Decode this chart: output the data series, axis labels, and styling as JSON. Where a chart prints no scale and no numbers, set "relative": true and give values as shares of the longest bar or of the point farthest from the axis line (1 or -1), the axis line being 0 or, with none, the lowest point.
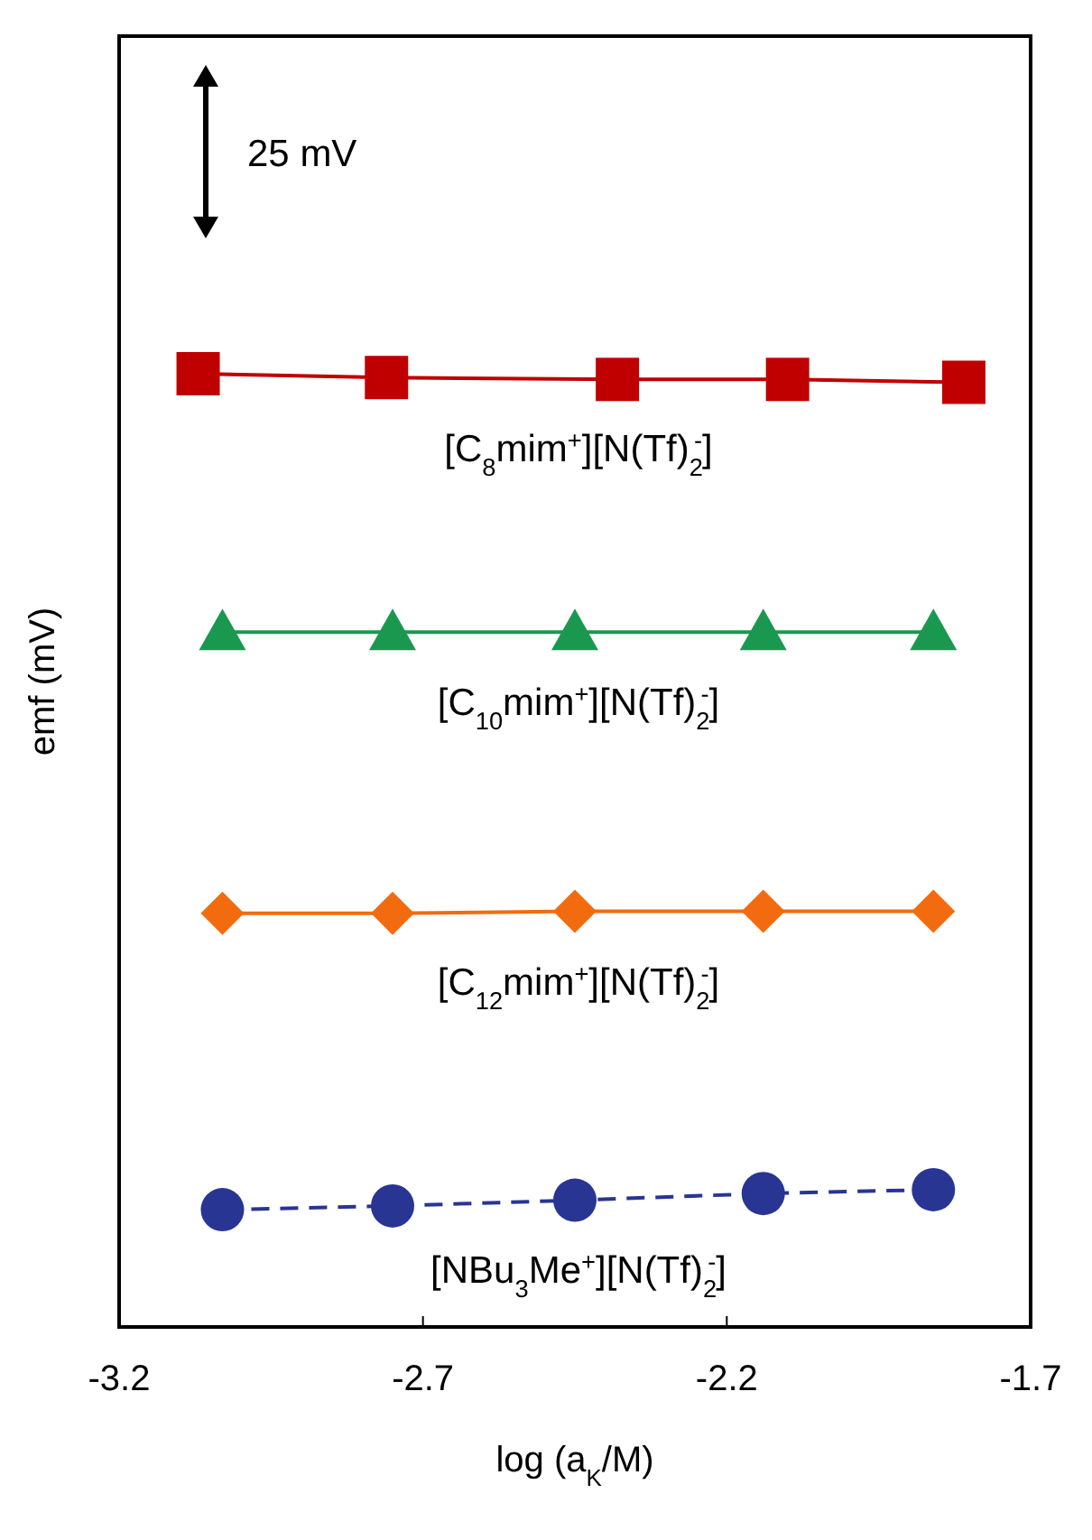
{
  "chart_data": {
    "type": "line",
    "relative": true,
    "xlabel": "log (a$_{K}$/M)",
    "ylabel": "emf (mV)",
    "xlim": [
      -3.2,
      -1.7
    ],
    "xticks": [
      -3.2,
      -2.7,
      -2.2,
      -1.7
    ],
    "grid": false,
    "legend": false,
    "annotations": [
      "25 mV"
    ],
    "series": [
      {
        "name": "[C$_{8}$mim$^{+}$][N(Tf)$_{2}$$^{-}$]",
        "color": "#c00000",
        "marker": "square",
        "line_style": "solid",
        "x": [
          -3.07,
          -2.76,
          -2.38,
          -2.1,
          -1.81
        ],
        "values": [
          1,
          0.996,
          0.994,
          0.994,
          0.991
        ]
      },
      {
        "name": "[C$_{10}$mim$^{+}$][N(Tf)$_{2}$$^{-}$]",
        "color": "#1a9850",
        "marker": "triangle",
        "line_style": "solid",
        "x": [
          -3.03,
          -2.75,
          -2.45,
          -2.14,
          -1.86
        ],
        "values": [
          0.729,
          0.729,
          0.729,
          0.729,
          0.729
        ]
      },
      {
        "name": "[C$_{12}$mim$^{+}$][N(Tf)$_{2}$$^{-}$]",
        "color": "#f26b0f",
        "marker": "diamond",
        "line_style": "solid",
        "x": [
          -3.03,
          -2.75,
          -2.45,
          -2.14,
          -1.86
        ],
        "values": [
          0.434,
          0.434,
          0.436,
          0.436,
          0.436
        ]
      },
      {
        "name": "[NBu$_{3}$Me$^{+}$][N(Tf)$_{2}$$^{-}$]",
        "color": "#283593",
        "marker": "circle",
        "line_style": "dashed",
        "x": [
          -3.03,
          -2.75,
          -2.45,
          -2.14,
          -1.86
        ],
        "values": [
          0.123,
          0.127,
          0.133,
          0.14,
          0.144
        ]
      }
    ]
  }
}
